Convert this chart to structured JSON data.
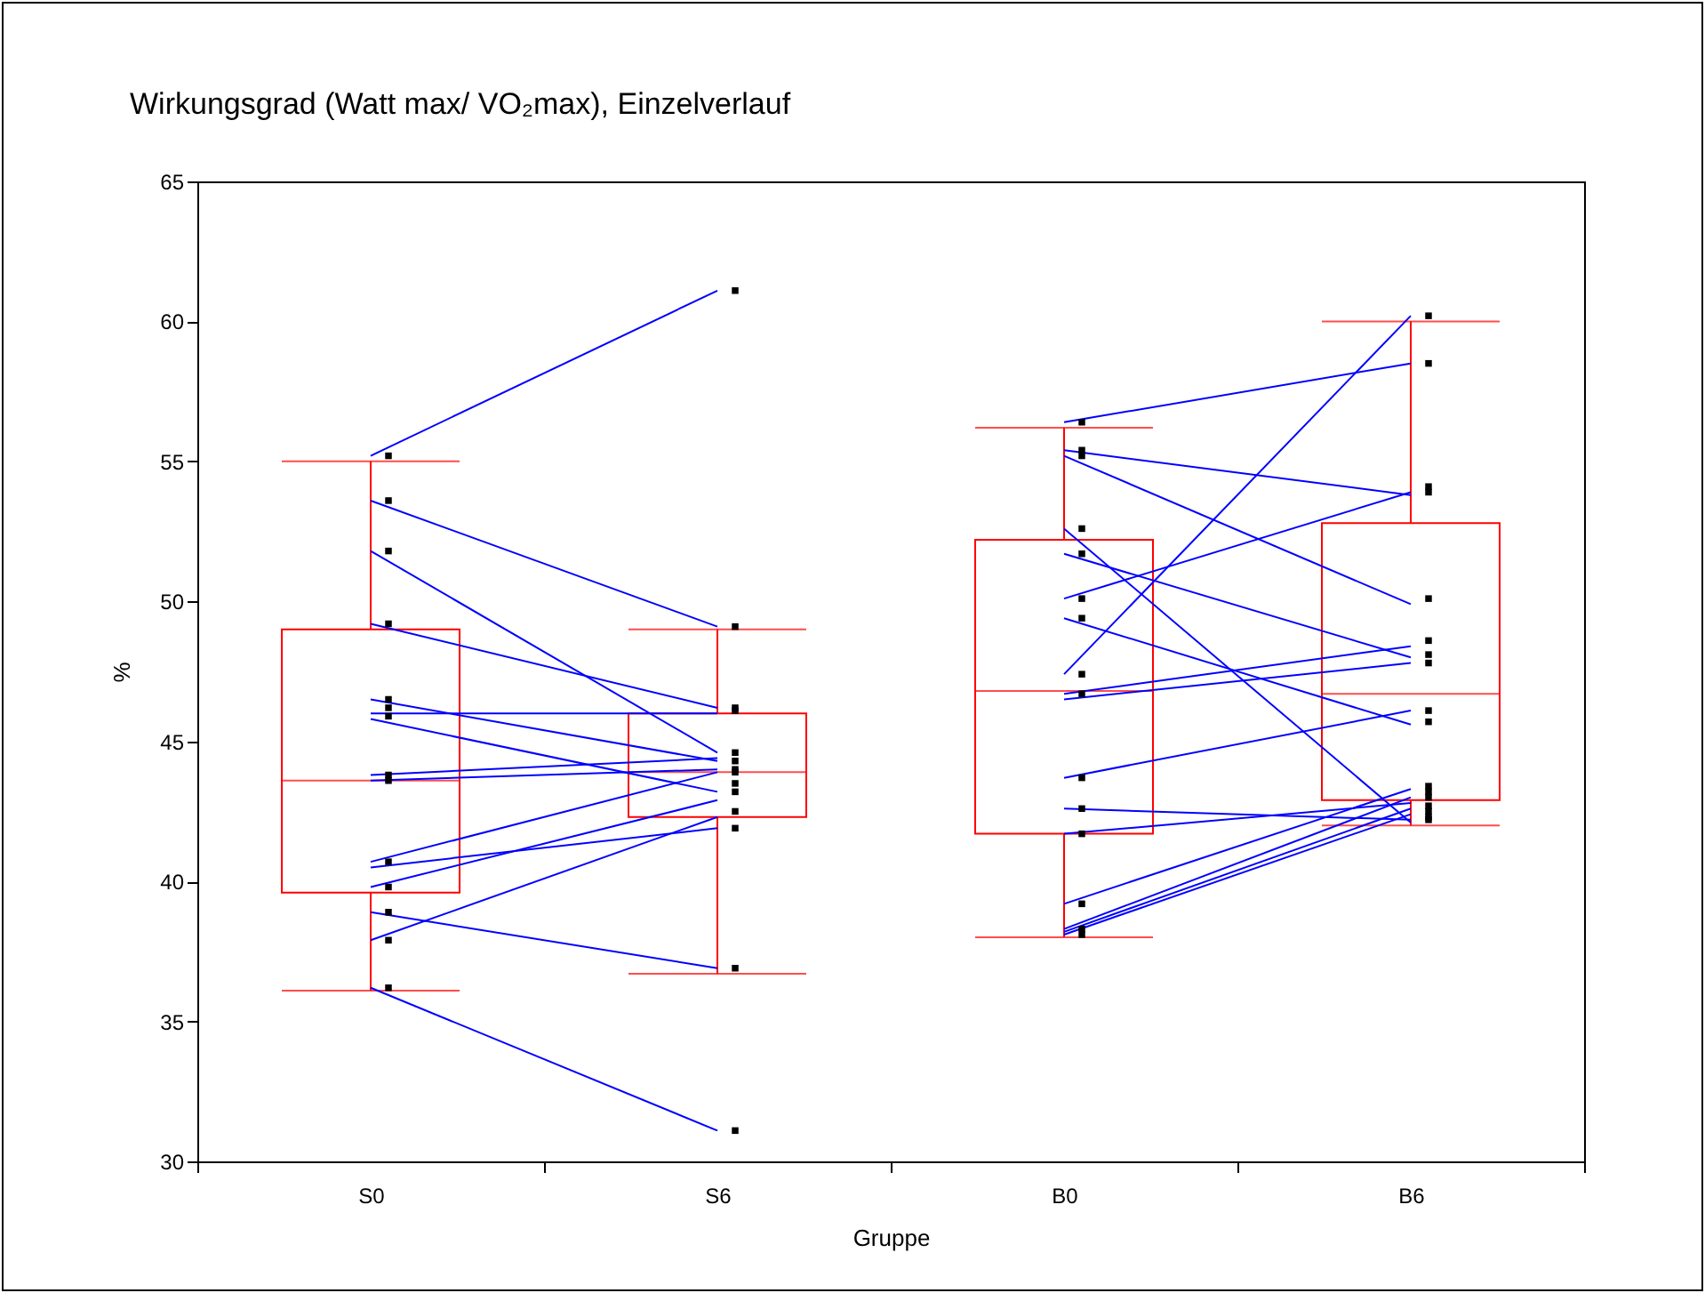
{
  "chart_data": {
    "type": "box",
    "title": "Wirkungsgrad (Watt max/ VO₂max), Einzelverlauf",
    "xlabel": "Gruppe",
    "ylabel": "%",
    "categories": [
      "S0",
      "S6",
      "B0",
      "B6"
    ],
    "ylim": [
      30,
      65
    ],
    "yticks": [
      30,
      35,
      40,
      45,
      50,
      55,
      60,
      65
    ],
    "grid": false,
    "legend": false,
    "series": [
      {
        "color": "#ff0000",
        "boxes": [
          {
            "low": 36.1,
            "q1": 39.6,
            "median": 43.6,
            "q3": 49.0,
            "high": 55.0
          },
          {
            "low": 36.7,
            "q1": 42.3,
            "median": 43.9,
            "q3": 46.0,
            "high": 49.0
          },
          {
            "low": 38.0,
            "q1": 41.7,
            "median": 46.8,
            "q3": 52.2,
            "high": 56.2
          },
          {
            "low": 42.0,
            "q1": 42.9,
            "median": 46.7,
            "q3": 52.8,
            "high": 60.0
          }
        ]
      },
      {
        "type": "line",
        "color": "#0000ff",
        "x": [
          "S0",
          "S6"
        ],
        "values": [
          55.2,
          61.1
        ]
      },
      {
        "type": "line",
        "color": "#0000ff",
        "x": [
          "S0",
          "S6"
        ],
        "values": [
          53.6,
          49.1
        ]
      },
      {
        "type": "line",
        "color": "#0000ff",
        "x": [
          "S0",
          "S6"
        ],
        "values": [
          51.8,
          44.6
        ]
      },
      {
        "type": "line",
        "color": "#0000ff",
        "x": [
          "S0",
          "S6"
        ],
        "values": [
          49.2,
          46.2
        ]
      },
      {
        "type": "line",
        "color": "#0000ff",
        "x": [
          "S0",
          "S6"
        ],
        "values": [
          46.5,
          44.3
        ]
      },
      {
        "type": "line",
        "color": "#0000ff",
        "x": [
          "S0",
          "S6"
        ],
        "values": [
          46.0,
          46.0
        ]
      },
      {
        "type": "line",
        "color": "#0000ff",
        "x": [
          "S0",
          "S6"
        ],
        "values": [
          45.8,
          43.2
        ]
      },
      {
        "type": "line",
        "color": "#0000ff",
        "x": [
          "S0",
          "S6"
        ],
        "values": [
          43.8,
          44.4
        ]
      },
      {
        "type": "line",
        "color": "#0000ff",
        "x": [
          "S0",
          "S6"
        ],
        "values": [
          43.6,
          44.0
        ]
      },
      {
        "type": "line",
        "color": "#0000ff",
        "x": [
          "S0",
          "S6"
        ],
        "values": [
          40.7,
          43.9
        ]
      },
      {
        "type": "line",
        "color": "#0000ff",
        "x": [
          "S0",
          "S6"
        ],
        "values": [
          40.5,
          41.9
        ]
      },
      {
        "type": "line",
        "color": "#0000ff",
        "x": [
          "S0",
          "S6"
        ],
        "values": [
          39.8,
          42.9
        ]
      },
      {
        "type": "line",
        "color": "#0000ff",
        "x": [
          "S0",
          "S6"
        ],
        "values": [
          38.9,
          36.9
        ]
      },
      {
        "type": "line",
        "color": "#0000ff",
        "x": [
          "S0",
          "S6"
        ],
        "values": [
          37.9,
          42.3
        ]
      },
      {
        "type": "line",
        "color": "#0000ff",
        "x": [
          "S0",
          "S6"
        ],
        "values": [
          36.2,
          31.1
        ]
      },
      {
        "type": "line",
        "color": "#0000ff",
        "x": [
          "B0",
          "B6"
        ],
        "values": [
          56.4,
          58.5
        ]
      },
      {
        "type": "line",
        "color": "#0000ff",
        "x": [
          "B0",
          "B6"
        ],
        "values": [
          55.4,
          53.8
        ]
      },
      {
        "type": "line",
        "color": "#0000ff",
        "x": [
          "B0",
          "B6"
        ],
        "values": [
          55.2,
          49.9
        ]
      },
      {
        "type": "line",
        "color": "#0000ff",
        "x": [
          "B0",
          "B6"
        ],
        "values": [
          52.6,
          42.1
        ]
      },
      {
        "type": "line",
        "color": "#0000ff",
        "x": [
          "B0",
          "B6"
        ],
        "values": [
          51.7,
          48.0
        ]
      },
      {
        "type": "line",
        "color": "#0000ff",
        "x": [
          "B0",
          "B6"
        ],
        "values": [
          50.1,
          53.9
        ]
      },
      {
        "type": "line",
        "color": "#0000ff",
        "x": [
          "B0",
          "B6"
        ],
        "values": [
          49.4,
          45.6
        ]
      },
      {
        "type": "line",
        "color": "#0000ff",
        "x": [
          "B0",
          "B6"
        ],
        "values": [
          47.4,
          60.2
        ]
      },
      {
        "type": "line",
        "color": "#0000ff",
        "x": [
          "B0",
          "B6"
        ],
        "values": [
          46.7,
          48.4
        ]
      },
      {
        "type": "line",
        "color": "#0000ff",
        "x": [
          "B0",
          "B6"
        ],
        "values": [
          46.5,
          47.8
        ]
      },
      {
        "type": "line",
        "color": "#0000ff",
        "x": [
          "B0",
          "B6"
        ],
        "values": [
          43.7,
          46.1
        ]
      },
      {
        "type": "line",
        "color": "#0000ff",
        "x": [
          "B0",
          "B6"
        ],
        "values": [
          42.6,
          42.2
        ]
      },
      {
        "type": "line",
        "color": "#0000ff",
        "x": [
          "B0",
          "B6"
        ],
        "values": [
          41.7,
          42.8
        ]
      },
      {
        "type": "line",
        "color": "#0000ff",
        "x": [
          "B0",
          "B6"
        ],
        "values": [
          39.2,
          43.3
        ]
      },
      {
        "type": "line",
        "color": "#0000ff",
        "x": [
          "B0",
          "B6"
        ],
        "values": [
          38.3,
          43.0
        ]
      },
      {
        "type": "line",
        "color": "#0000ff",
        "x": [
          "B0",
          "B6"
        ],
        "values": [
          38.2,
          42.6
        ]
      },
      {
        "type": "line",
        "color": "#0000ff",
        "x": [
          "B0",
          "B6"
        ],
        "values": [
          38.1,
          42.4
        ]
      },
      {
        "type": "scatter",
        "color": "#000000",
        "marker": "square",
        "x": [
          "S0",
          "S0",
          "S0",
          "S0",
          "S0",
          "S0",
          "S0",
          "S0",
          "S0",
          "S0",
          "S0",
          "S0",
          "S0",
          "S0",
          "S6",
          "S6",
          "S6",
          "S6",
          "S6",
          "S6",
          "S6",
          "S6",
          "S6",
          "S6",
          "S6",
          "S6",
          "S6",
          "S6",
          "B0",
          "B0",
          "B0",
          "B0",
          "B0",
          "B0",
          "B0",
          "B0",
          "B0",
          "B0",
          "B0",
          "B0",
          "B0",
          "B0",
          "B0",
          "B6",
          "B6",
          "B6",
          "B6",
          "B6",
          "B6",
          "B6",
          "B6",
          "B6",
          "B6",
          "B6",
          "B6",
          "B6",
          "B6",
          "B6",
          "B6",
          "B6"
        ],
        "values": [
          55.2,
          53.6,
          51.8,
          49.2,
          46.5,
          46.2,
          45.9,
          43.8,
          43.6,
          40.7,
          39.8,
          38.9,
          37.9,
          36.2,
          61.1,
          49.1,
          46.2,
          46.1,
          44.6,
          44.3,
          44.0,
          43.9,
          43.5,
          43.2,
          42.5,
          41.9,
          36.9,
          31.1,
          56.4,
          55.4,
          55.2,
          52.6,
          51.7,
          50.1,
          49.4,
          47.4,
          46.7,
          43.7,
          42.6,
          41.7,
          39.2,
          38.3,
          38.1,
          60.2,
          58.5,
          54.1,
          53.9,
          50.1,
          48.6,
          48.1,
          47.8,
          46.1,
          45.7,
          43.4,
          43.2,
          43.0,
          42.7,
          42.5,
          42.3,
          42.2
        ]
      }
    ]
  }
}
